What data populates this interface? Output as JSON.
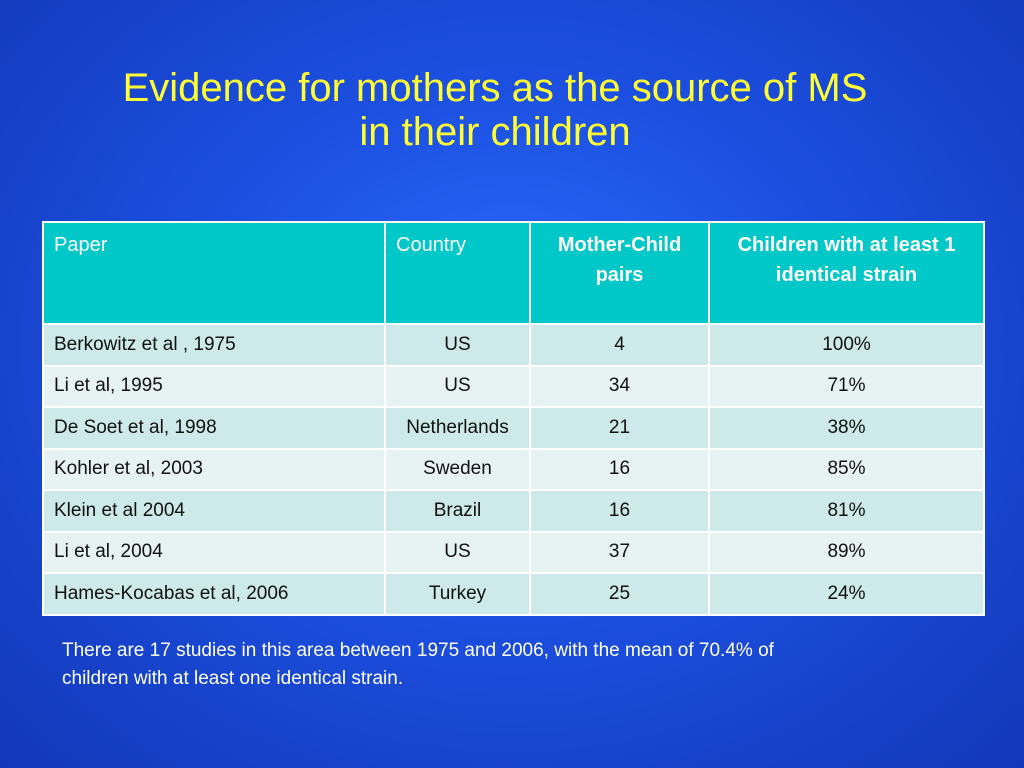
{
  "slide": {
    "title_line1": "Evidence for mothers as the source of MS",
    "title_line2": "in their children",
    "footnote": "There are 17 studies in this area between 1975 and 2006, with the mean of 70.4% of children with at least one identical strain."
  },
  "table": {
    "headers": [
      "Paper",
      "Country",
      "Mother-Child pairs",
      "Children with at least  1 identical strain"
    ],
    "rows": [
      [
        "Berkowitz et al , 1975",
        "US",
        "4",
        "100%"
      ],
      [
        "Li et al, 1995",
        "US",
        "34",
        "71%"
      ],
      [
        "De Soet et al, 1998",
        "Netherlands",
        "21",
        "38%"
      ],
      [
        "Kohler et al, 2003",
        "Sweden",
        "16",
        "85%"
      ],
      [
        "Klein et al 2004",
        "Brazil",
        "16",
        "81%"
      ],
      [
        "Li et al, 2004",
        "US",
        "37",
        "89%"
      ],
      [
        "Hames-Kocabas et al, 2006",
        "Turkey",
        "25",
        "24%"
      ]
    ]
  },
  "colors": {
    "background": "#1c4fe0",
    "title": "#ffff33",
    "header_fill": "#00c8c8",
    "row_odd": "#cde9ea",
    "row_even": "#e7f3f3"
  }
}
